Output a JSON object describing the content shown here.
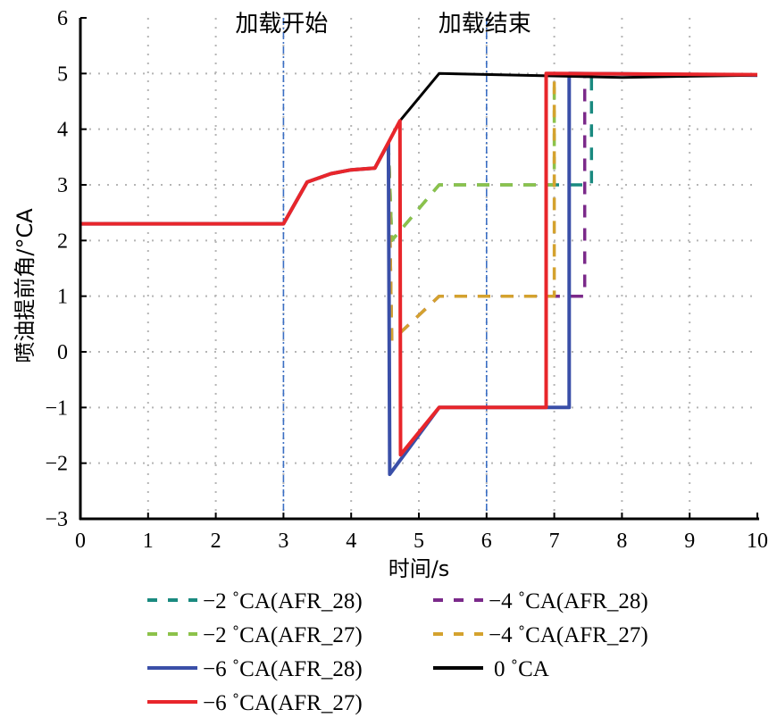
{
  "chart_data": {
    "type": "line",
    "title": "",
    "xlabel": "时间/s",
    "ylabel": "喷油提前角/°CA",
    "xlim": [
      0,
      10
    ],
    "ylim": [
      -3,
      6
    ],
    "xticks": [
      "0",
      "1",
      "2",
      "3",
      "4",
      "5",
      "6",
      "7",
      "8",
      "9",
      "10"
    ],
    "yticks": [
      "-3",
      "-2",
      "-1",
      "0",
      "1",
      "2",
      "3",
      "4",
      "5",
      "6"
    ],
    "grid": true,
    "annotations": [
      {
        "text": "加载开始",
        "x": 3
      },
      {
        "text": "加载结束",
        "x": 6
      }
    ],
    "annotation_line_color": "#3b6fc4",
    "legend_position": "bottom",
    "series": [
      {
        "name": "−2 ˚CA(AFR_28)",
        "color": "#1a8a80",
        "dash": true,
        "x": [
          0,
          3,
          3.35,
          3.7,
          4.0,
          4.35,
          4.55,
          4.6,
          5.3,
          7.55,
          7.55,
          10
        ],
        "y": [
          2.3,
          2.3,
          3.05,
          3.2,
          3.27,
          3.3,
          3.75,
          2.0,
          3.0,
          3.0,
          5.0,
          4.97
        ]
      },
      {
        "name": "−2 ˚CA(AFR_27)",
        "color": "#8cc24a",
        "dash": true,
        "x": [
          0,
          3,
          3.35,
          3.7,
          4.0,
          4.35,
          4.55,
          4.6,
          5.3,
          7.0,
          7.0,
          10
        ],
        "y": [
          2.3,
          2.3,
          3.05,
          3.2,
          3.27,
          3.3,
          3.75,
          2.0,
          3.0,
          3.0,
          5.0,
          4.97
        ]
      },
      {
        "name": "−4 ˚CA(AFR_28)",
        "color": "#7b2a8a",
        "dash": true,
        "x": [
          0,
          3,
          3.35,
          3.7,
          4.0,
          4.35,
          4.55,
          4.6,
          5.3,
          7.45,
          7.45,
          10
        ],
        "y": [
          2.3,
          2.3,
          3.05,
          3.2,
          3.27,
          3.3,
          3.75,
          0.2,
          1.0,
          1.0,
          5.0,
          4.97
        ]
      },
      {
        "name": "−4 ˚CA(AFR_27)",
        "color": "#d4a22e",
        "dash": true,
        "x": [
          0,
          3,
          3.35,
          3.7,
          4.0,
          4.35,
          4.55,
          4.6,
          5.3,
          7.0,
          7.0,
          10
        ],
        "y": [
          2.3,
          2.3,
          3.05,
          3.2,
          3.27,
          3.3,
          3.75,
          0.2,
          1.0,
          1.0,
          5.0,
          4.97
        ]
      },
      {
        "name": "−6 ˚CA(AFR_28)",
        "color": "#3a4fa8",
        "dash": false,
        "x": [
          0,
          3,
          3.35,
          3.7,
          4.0,
          4.35,
          4.55,
          4.57,
          5.3,
          7.22,
          7.22,
          10
        ],
        "y": [
          2.3,
          2.3,
          3.05,
          3.2,
          3.27,
          3.3,
          3.75,
          -2.2,
          -1.0,
          -1.0,
          5.0,
          4.97
        ]
      },
      {
        "name": "0 ˚CA",
        "color": "#000000",
        "dash": false,
        "x": [
          0,
          3,
          3.35,
          3.7,
          4.0,
          4.35,
          4.72,
          5.3,
          8.0,
          9.0,
          10
        ],
        "y": [
          2.3,
          2.3,
          3.05,
          3.2,
          3.27,
          3.3,
          4.15,
          5.0,
          4.93,
          4.95,
          4.97
        ]
      },
      {
        "name": "−6 ˚CA(AFR_27)",
        "color": "#e8262b",
        "dash": false,
        "x": [
          0,
          3,
          3.35,
          3.7,
          4.0,
          4.35,
          4.72,
          4.73,
          5.3,
          6.88,
          6.88,
          10
        ],
        "y": [
          2.3,
          2.3,
          3.05,
          3.2,
          3.27,
          3.3,
          4.15,
          -1.85,
          -1.0,
          -1.0,
          5.0,
          4.98
        ]
      }
    ]
  }
}
